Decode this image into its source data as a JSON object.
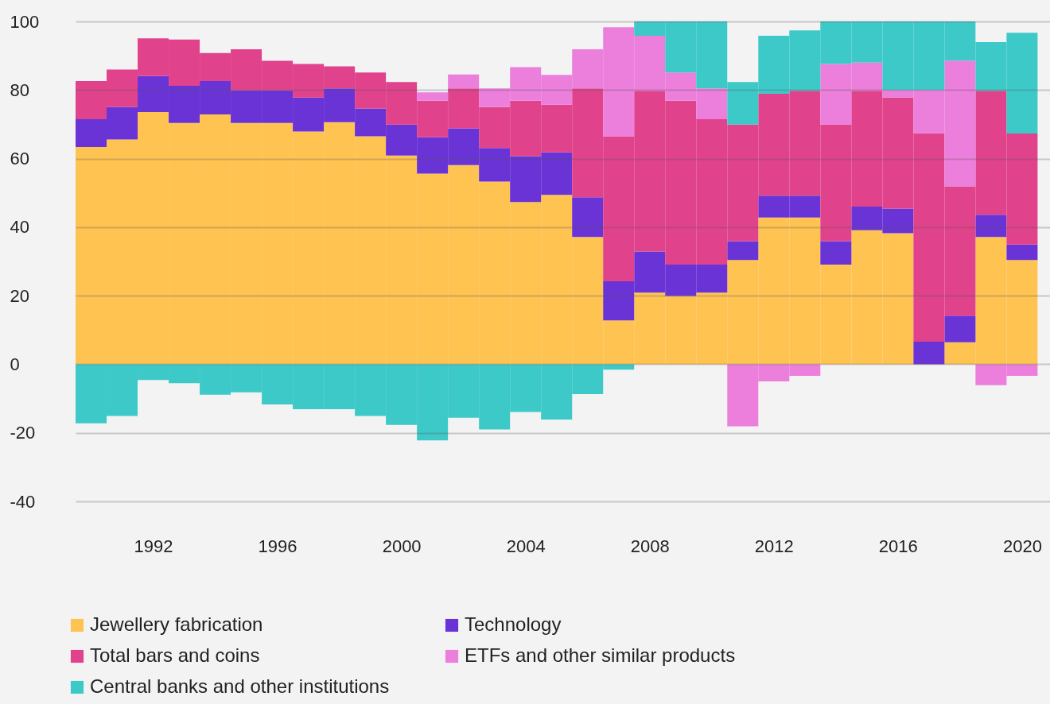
{
  "chart_data": {
    "type": "bar",
    "stacked": true,
    "x": [
      1990,
      1991,
      1992,
      1993,
      1994,
      1995,
      1996,
      1997,
      1998,
      1999,
      2000,
      2001,
      2002,
      2003,
      2004,
      2005,
      2006,
      2007,
      2008,
      2009,
      2010,
      2011,
      2012,
      2013,
      2014,
      2015,
      2016,
      2017,
      2018,
      2019,
      2020
    ],
    "series": [
      {
        "name": "Jewellery fabrication",
        "color": "#ffc352",
        "values": [
          63.4,
          65.6,
          73.6,
          70.4,
          72.9,
          70.4,
          70.4,
          67.9,
          70.6,
          66.5,
          60.9,
          55.6,
          58.1,
          53.3,
          47.3,
          49.4,
          37.1,
          12.8,
          20.9,
          19.9,
          20.9,
          30.4,
          42.8,
          42.8,
          29.1,
          39.1,
          38.2,
          0,
          6.4,
          37.1,
          30.4
        ]
      },
      {
        "name": "Technology",
        "color": "#6933d6",
        "values": [
          8.1,
          9.4,
          10.5,
          10.8,
          9.7,
          9.5,
          9.5,
          9.9,
          9.9,
          8.1,
          9.0,
          10.6,
          10.7,
          9.8,
          13.4,
          12.4,
          11.6,
          11.4,
          12.0,
          9.2,
          8.2,
          5.5,
          6.4,
          6.4,
          6.8,
          6.9,
          7.2,
          6.6,
          7.8,
          6.5,
          4.5
        ]
      },
      {
        "name": "Total bars and coins",
        "color": "#e0438c",
        "values": [
          11.1,
          11.0,
          11.0,
          13.5,
          8.2,
          12.0,
          8.6,
          9.8,
          6.4,
          10.5,
          12.4,
          10.7,
          11.7,
          11.9,
          16.2,
          13.9,
          31.8,
          42.3,
          46.9,
          47.8,
          42.4,
          34.0,
          29.7,
          30.6,
          34.0,
          33.8,
          32.4,
          60.8,
          37.7,
          36.2,
          32.4
        ]
      },
      {
        "name": "ETFs and other similar products",
        "color": "#ec7fdc",
        "values": [
          null,
          null,
          null,
          null,
          null,
          null,
          null,
          null,
          null,
          null,
          null,
          2.4,
          4.0,
          5.5,
          9.8,
          8.7,
          11.4,
          31.8,
          16.0,
          8.2,
          9.0,
          -18.1,
          -5.0,
          -3.4,
          17.7,
          8.2,
          2.2,
          12.6,
          36.7,
          -6.1,
          -3.4
        ]
      },
      {
        "name": "Central banks and other institutions",
        "color": "#3ec9c9",
        "values": [
          -17.2,
          -15.1,
          -4.6,
          -5.5,
          -8.9,
          -8.2,
          -11.7,
          -13.1,
          -13.1,
          -15.1,
          -17.7,
          -22.2,
          -15.6,
          -19.0,
          -13.9,
          -16.1,
          -8.7,
          -1.6,
          4.2,
          14.9,
          19.5,
          12.4,
          16.9,
          17.6,
          12.4,
          12.0,
          20.0,
          20.0,
          11.4,
          14.2,
          29.4
        ]
      }
    ],
    "xlim": [
      1989.5,
      2020.9
    ],
    "xticks": [
      1992,
      1996,
      2000,
      2004,
      2008,
      2012,
      2016,
      2020
    ],
    "ylim": [
      -40,
      100
    ],
    "yticks": [
      -40,
      -20,
      0,
      20,
      40,
      60,
      80,
      100
    ],
    "grid": "y",
    "legend": "bottom"
  }
}
